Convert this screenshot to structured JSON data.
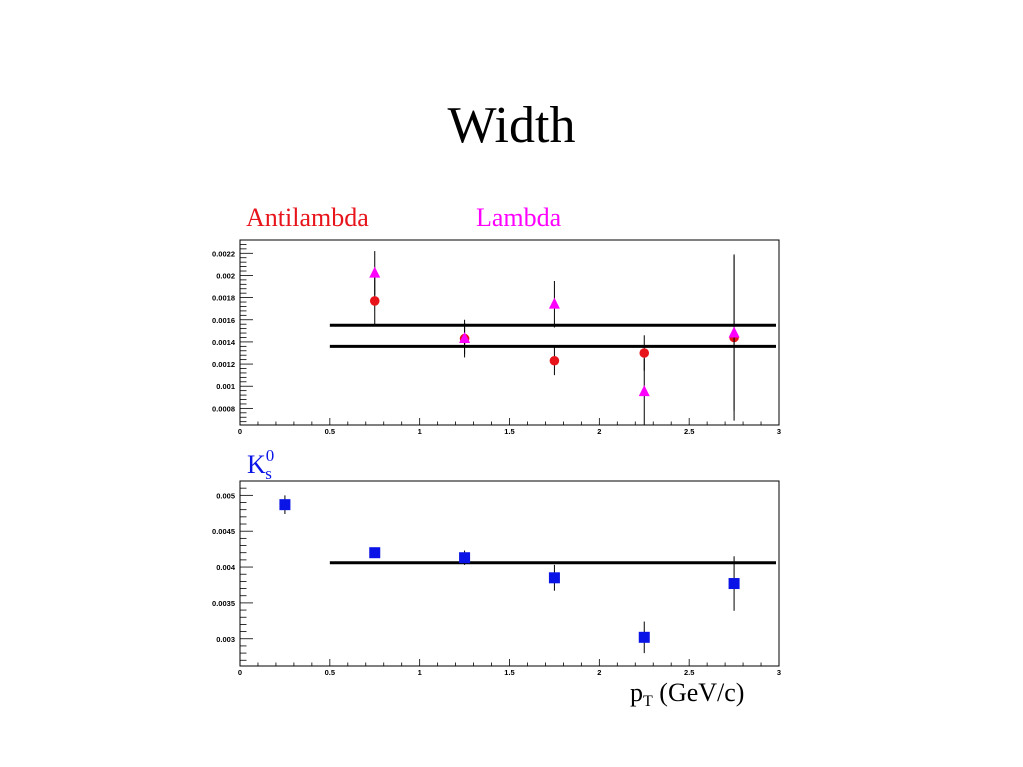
{
  "title": "Width",
  "top_labels": {
    "antilambda": "Antilambda",
    "lambda": "Lambda"
  },
  "k0_label": {
    "base": "K",
    "sup": "0",
    "sub": "s"
  },
  "xlabel": {
    "base": "p",
    "sub": "T",
    "rest": " (GeV/c)"
  },
  "colors": {
    "antilambda": "#e8141b",
    "lambda": "#ff00ff",
    "k0s": "#0a14e6",
    "text": "#000000"
  },
  "chart_data": [
    {
      "type": "scatter",
      "xlim": [
        0,
        3
      ],
      "ylim": [
        0.00065,
        0.00232
      ],
      "x_ticks": [
        "0",
        "0.5",
        "1",
        "1.5",
        "2",
        "2.5",
        "3"
      ],
      "x_tick_values": [
        0,
        0.5,
        1,
        1.5,
        2,
        2.5,
        3
      ],
      "y_ticks": [
        "0.0008",
        "0.001",
        "0.0012",
        "0.0014",
        "0.0016",
        "0.0018",
        "0.002",
        "0.0022"
      ],
      "y_tick_values": [
        0.0008,
        0.001,
        0.0012,
        0.0014,
        0.0016,
        0.0018,
        0.002,
        0.0022
      ],
      "series": [
        {
          "name": "Antilambda",
          "marker": "circle",
          "x": [
            0.75,
            1.25,
            1.75,
            2.25,
            2.75
          ],
          "y": [
            0.00177,
            0.00143,
            0.00123,
            0.0013,
            0.00144
          ],
          "err": [
            0.00023,
            0.00017,
            0.00013,
            0.00016,
            0.00075
          ]
        },
        {
          "name": "Lambda",
          "marker": "triangle",
          "x": [
            0.75,
            1.25,
            1.75,
            2.25,
            2.75
          ],
          "y": [
            0.00202,
            0.00143,
            0.00174,
            0.00095,
            0.00148
          ],
          "err": [
            0.0002,
            0.00014,
            0.00021,
            0.0003,
            0.0007
          ]
        }
      ],
      "fit_lines": [
        {
          "x": [
            0.5,
            3
          ],
          "y": 0.00155
        },
        {
          "x": [
            0.5,
            3
          ],
          "y": 0.00136
        }
      ]
    },
    {
      "type": "scatter",
      "xlim": [
        0,
        3
      ],
      "ylim": [
        0.00262,
        0.0052
      ],
      "x_ticks": [
        "0",
        "0.5",
        "1",
        "1.5",
        "2",
        "2.5",
        "3"
      ],
      "x_tick_values": [
        0,
        0.5,
        1,
        1.5,
        2,
        2.5,
        3
      ],
      "y_ticks": [
        "0.003",
        "0.0035",
        "0.004",
        "0.0045",
        "0.005"
      ],
      "y_tick_values": [
        0.003,
        0.0035,
        0.004,
        0.0045,
        0.005
      ],
      "series": [
        {
          "name": "K0s",
          "marker": "square",
          "x": [
            0.25,
            0.75,
            1.25,
            1.75,
            2.25,
            2.75
          ],
          "y": [
            0.00487,
            0.0042,
            0.00413,
            0.00385,
            0.00302,
            0.00377
          ],
          "err": [
            0.00013,
            5e-05,
            0.0001,
            0.00018,
            0.00022,
            0.00038
          ]
        }
      ],
      "fit_lines": [
        {
          "x": [
            0.5,
            3
          ],
          "y": 0.00406
        }
      ]
    }
  ]
}
